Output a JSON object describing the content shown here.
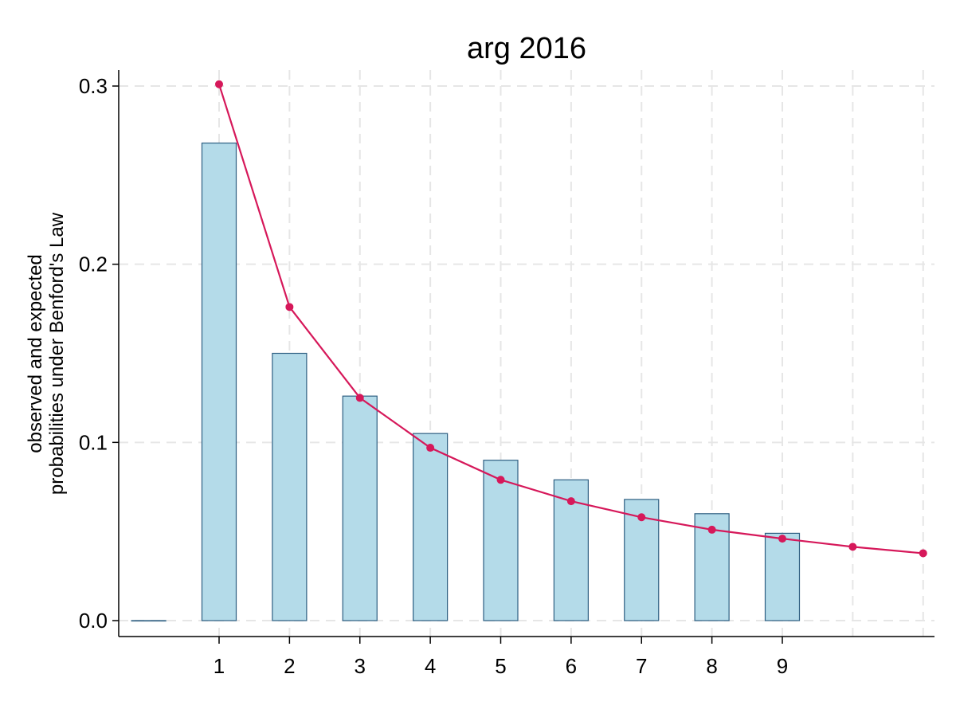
{
  "chart_data": {
    "type": "bar",
    "title": "arg 2016",
    "ylabel_line1": "observed and expected",
    "ylabel_line2": "probabilities under Benford's Law",
    "xlabel": "",
    "xlim": [
      -0.2,
      11.2
    ],
    "ylim": [
      -0.009,
      0.31
    ],
    "x_ticks": [
      1,
      2,
      3,
      4,
      5,
      6,
      7,
      8,
      9
    ],
    "y_ticks": [
      "0.0",
      "0.1",
      "0.2",
      "0.3"
    ],
    "y_tick_values": [
      0,
      0.1,
      0.2,
      0.3
    ],
    "x_grid": [
      1,
      2,
      3,
      4,
      5,
      6,
      7,
      8,
      9,
      10,
      11
    ],
    "grid": true,
    "series": [
      {
        "type": "bar",
        "x": [
          0,
          1,
          2,
          3,
          4,
          5,
          6,
          7,
          8,
          9
        ],
        "values": [
          0.0,
          0.268,
          0.15,
          0.126,
          0.105,
          0.09,
          0.079,
          0.068,
          0.06,
          0.049
        ]
      },
      {
        "type": "line",
        "x": [
          1,
          2,
          3,
          4,
          5,
          6,
          7,
          8,
          9,
          10,
          11
        ],
        "values": [
          0.301,
          0.176,
          0.125,
          0.097,
          0.079,
          0.067,
          0.058,
          0.051,
          0.046,
          0.0414,
          0.0378
        ]
      }
    ],
    "colors": {
      "bar_fill": "#b4dbe9",
      "bar_edge": "#2e5f82",
      "line": "#d6185a"
    }
  }
}
